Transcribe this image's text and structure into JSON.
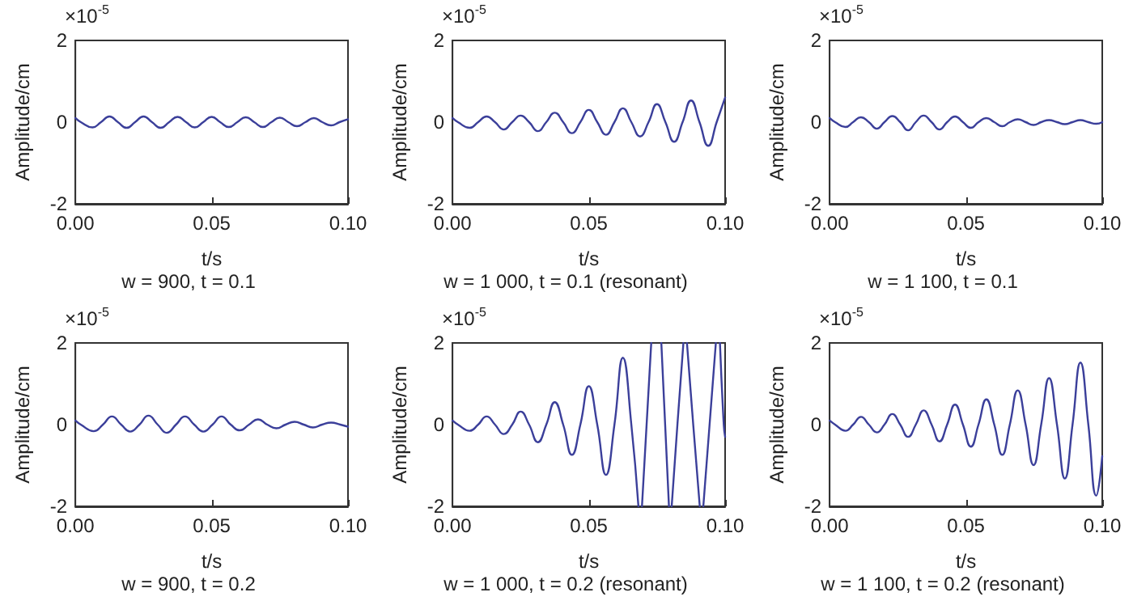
{
  "chart_data": [
    {
      "type": "line",
      "title": "w = 900, t = 0.1",
      "xlabel": "t/s",
      "ylabel": "Amplitude/cm",
      "annotations": [
        "×10$^{-5}$"
      ],
      "color": "#3b3f9a",
      "xlim": [
        0,
        0.1
      ],
      "ylim": [
        -2,
        2
      ],
      "xticks": [
        {
          "value": 0,
          "label": "0.00"
        },
        {
          "value": 0.05,
          "label": "0.05"
        },
        {
          "value": 0.1,
          "label": "0.10"
        }
      ],
      "yticks": [
        -2,
        0,
        2
      ],
      "x": [
        0,
        0.002,
        0.0063,
        0.0094,
        0.0125,
        0.0156,
        0.0188,
        0.0219,
        0.025,
        0.0281,
        0.0313,
        0.0344,
        0.0375,
        0.0406,
        0.0438,
        0.0469,
        0.05,
        0.0531,
        0.0563,
        0.0594,
        0.0625,
        0.0656,
        0.0688,
        0.0719,
        0.075,
        0.0781,
        0.0813,
        0.0844,
        0.0875,
        0.0906,
        0.0938,
        0.0969,
        0.1
      ],
      "values": [
        0.1,
        0,
        -0.13,
        0,
        0.14,
        0,
        -0.14,
        0,
        0.14,
        0,
        -0.14,
        0,
        0.13,
        0,
        -0.13,
        0,
        0.13,
        0,
        -0.12,
        0,
        0.12,
        0,
        -0.12,
        0,
        0.11,
        0,
        -0.1,
        0,
        0.1,
        0,
        -0.08,
        0,
        0.07
      ]
    },
    {
      "type": "line",
      "title": "w = 1 000, t = 0.1 (resonant)",
      "xlabel": "t/s",
      "ylabel": "Amplitude/cm",
      "annotations": [
        "×10$^{-5}$"
      ],
      "color": "#3b3f9a",
      "xlim": [
        0,
        0.1
      ],
      "ylim": [
        -2,
        2
      ],
      "xticks": [
        {
          "value": 0,
          "label": "0.00"
        },
        {
          "value": 0.05,
          "label": "0.05"
        },
        {
          "value": 0.1,
          "label": "0.10"
        }
      ],
      "yticks": [
        -2,
        0,
        2
      ],
      "x": [
        0,
        0.002,
        0.0063,
        0.0094,
        0.0125,
        0.0156,
        0.0188,
        0.0219,
        0.025,
        0.0281,
        0.0313,
        0.0344,
        0.0375,
        0.0406,
        0.0438,
        0.0469,
        0.05,
        0.0531,
        0.0563,
        0.0594,
        0.0625,
        0.0656,
        0.0688,
        0.0719,
        0.075,
        0.0781,
        0.0813,
        0.0844,
        0.0875,
        0.0906,
        0.0938,
        0.0969,
        0.1
      ],
      "values": [
        0.1,
        0,
        -0.14,
        0,
        0.14,
        0,
        -0.18,
        0,
        0.16,
        0,
        -0.22,
        0,
        0.23,
        0,
        -0.27,
        0,
        0.3,
        0,
        -0.31,
        0,
        0.34,
        0,
        -0.35,
        0,
        0.44,
        0,
        -0.48,
        0,
        0.53,
        0,
        -0.58,
        0,
        0.6
      ]
    },
    {
      "type": "line",
      "title": "w = 1 100, t = 0.1",
      "xlabel": "t/s",
      "ylabel": "Amplitude/cm",
      "annotations": [
        "×10$^{-5}$"
      ],
      "color": "#3b3f9a",
      "xlim": [
        0,
        0.1
      ],
      "ylim": [
        -2,
        2
      ],
      "xticks": [
        {
          "value": 0,
          "label": "0.00"
        },
        {
          "value": 0.05,
          "label": "0.05"
        },
        {
          "value": 0.1,
          "label": "0.10"
        }
      ],
      "yticks": [
        -2,
        0,
        2
      ],
      "x": [
        0,
        0.002,
        0.0058,
        0.0086,
        0.0115,
        0.0144,
        0.0173,
        0.0201,
        0.023,
        0.0259,
        0.0288,
        0.0316,
        0.0345,
        0.0374,
        0.0403,
        0.0431,
        0.046,
        0.0489,
        0.0518,
        0.0546,
        0.0575,
        0.0604,
        0.0633,
        0.0661,
        0.069,
        0.0719,
        0.0748,
        0.0776,
        0.0805,
        0.0834,
        0.0863,
        0.0891,
        0.092,
        0.0949,
        0.0978,
        0.1
      ],
      "values": [
        0.1,
        0,
        -0.12,
        0,
        0.12,
        0,
        -0.16,
        0,
        0.15,
        0,
        -0.2,
        0,
        0.16,
        0,
        -0.18,
        0,
        0.14,
        0,
        -0.14,
        0,
        0.1,
        0,
        -0.1,
        0,
        0.07,
        0,
        -0.07,
        0,
        0.05,
        0,
        -0.05,
        0,
        0.05,
        0,
        -0.04,
        0
      ]
    },
    {
      "type": "line",
      "title": "w = 900, t = 0.2",
      "xlabel": "t/s",
      "ylabel": "Amplitude/cm",
      "annotations": [
        "×10$^{-5}$"
      ],
      "color": "#3b3f9a",
      "xlim": [
        0,
        0.1
      ],
      "ylim": [
        -2,
        2
      ],
      "xticks": [
        {
          "value": 0,
          "label": "0.00"
        },
        {
          "value": 0.05,
          "label": "0.05"
        },
        {
          "value": 0.1,
          "label": "0.10"
        }
      ],
      "yticks": [
        -2,
        0,
        2
      ],
      "x": [
        0,
        0.002,
        0.0067,
        0.0101,
        0.0134,
        0.0168,
        0.0201,
        0.0235,
        0.0268,
        0.0302,
        0.0335,
        0.0369,
        0.0402,
        0.0436,
        0.0469,
        0.0503,
        0.0536,
        0.057,
        0.0603,
        0.0637,
        0.067,
        0.0704,
        0.0737,
        0.0771,
        0.0804,
        0.0838,
        0.0871,
        0.0905,
        0.0938,
        0.0972,
        0.1
      ],
      "values": [
        0.1,
        0,
        -0.16,
        0,
        0.2,
        0,
        -0.17,
        0,
        0.22,
        0,
        -0.2,
        0,
        0.2,
        0,
        -0.17,
        0,
        0.2,
        0,
        -0.14,
        0,
        0.13,
        0,
        -0.09,
        0,
        0.07,
        0,
        -0.07,
        0,
        0.05,
        0,
        -0.05
      ]
    },
    {
      "type": "line",
      "title": "w = 1 000, t = 0.2 (resonant)",
      "xlabel": "t/s",
      "ylabel": "Amplitude/cm",
      "annotations": [
        "×10$^{-5}$"
      ],
      "color": "#3b3f9a",
      "xlim": [
        0,
        0.1
      ],
      "ylim": [
        -2,
        2
      ],
      "xticks": [
        {
          "value": 0,
          "label": "0.00"
        },
        {
          "value": 0.05,
          "label": "0.05"
        },
        {
          "value": 0.1,
          "label": "0.10"
        }
      ],
      "yticks": [
        -2,
        0,
        2
      ],
      "x": [
        0,
        0.002,
        0.0063,
        0.0094,
        0.0125,
        0.0156,
        0.0188,
        0.0219,
        0.025,
        0.0281,
        0.0313,
        0.0344,
        0.0375,
        0.0406,
        0.0438,
        0.0469,
        0.05,
        0.0531,
        0.0563,
        0.0594,
        0.0625,
        0.0656,
        0.0682,
        0.0688,
        0.0695,
        0.0712,
        0.0729,
        0.0747,
        0.0766,
        0.078,
        0.0794,
        0.0799,
        0.0804,
        0.0825,
        0.0847,
        0.0853,
        0.086,
        0.0883,
        0.0907,
        0.0913,
        0.092,
        0.0943,
        0.0966,
        0.0973,
        0.0981,
        0.0995,
        0.1
      ],
      "values": [
        0.1,
        0,
        -0.15,
        0,
        0.2,
        0,
        -0.23,
        0,
        0.32,
        0,
        -0.43,
        0,
        0.55,
        0,
        -0.74,
        0,
        0.94,
        0,
        -1.23,
        0,
        1.64,
        0,
        -2,
        null,
        -2,
        0,
        2,
        null,
        2,
        0,
        -2,
        null,
        -2,
        0,
        2,
        null,
        2,
        0,
        -2,
        null,
        -2,
        0,
        2,
        null,
        2,
        0,
        -0.3
      ]
    },
    {
      "type": "line",
      "title": "w = 1 100, t = 0.2 (resonant)",
      "xlabel": "t/s",
      "ylabel": "Amplitude/cm",
      "annotations": [
        "×10$^{-5}$"
      ],
      "color": "#3b3f9a",
      "xlim": [
        0,
        0.1
      ],
      "ylim": [
        -2,
        2
      ],
      "xticks": [
        {
          "value": 0,
          "label": "0.00"
        },
        {
          "value": 0.05,
          "label": "0.05"
        },
        {
          "value": 0.1,
          "label": "0.10"
        }
      ],
      "yticks": [
        -2,
        0,
        2
      ],
      "x": [
        0,
        0.002,
        0.0058,
        0.0086,
        0.0115,
        0.0144,
        0.0173,
        0.0201,
        0.023,
        0.0259,
        0.0288,
        0.0316,
        0.0345,
        0.0374,
        0.0403,
        0.0431,
        0.046,
        0.0489,
        0.0518,
        0.0546,
        0.0575,
        0.0604,
        0.0633,
        0.0661,
        0.069,
        0.0719,
        0.0748,
        0.0776,
        0.0805,
        0.0834,
        0.0863,
        0.0891,
        0.092,
        0.0949,
        0.0978,
        0.1
      ],
      "values": [
        0.1,
        0,
        -0.15,
        0,
        0.19,
        0,
        -0.19,
        0,
        0.26,
        0,
        -0.3,
        0,
        0.35,
        0,
        -0.41,
        0,
        0.49,
        0,
        -0.54,
        0,
        0.62,
        0,
        -0.74,
        0,
        0.84,
        0,
        -0.99,
        0,
        1.14,
        0,
        -1.32,
        0,
        1.52,
        0,
        -1.74,
        -0.77
      ]
    }
  ]
}
